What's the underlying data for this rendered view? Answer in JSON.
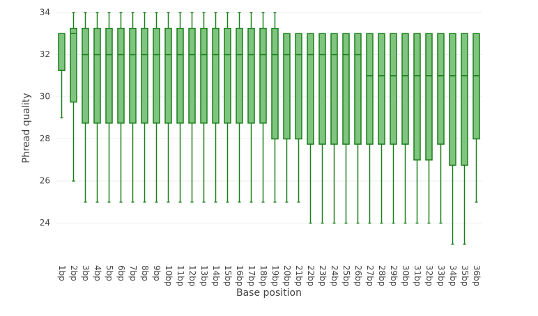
{
  "chart_data": {
    "type": "box",
    "x_label": "Base position",
    "y_label": "Phread quality",
    "categories": [
      "1bp",
      "2bp",
      "3bp",
      "4bp",
      "5bp",
      "6bp",
      "7bp",
      "8bp",
      "9bp",
      "10bp",
      "11bp",
      "12bp",
      "13bp",
      "14bp",
      "15bp",
      "16bp",
      "17bp",
      "18bp",
      "19bp",
      "20bp",
      "21bp",
      "22bp",
      "23bp",
      "24bp",
      "25bp",
      "26bp",
      "27bp",
      "28bp",
      "29bp",
      "30bp",
      "31bp",
      "32bp",
      "33bp",
      "34bp",
      "35bp",
      "36bp"
    ],
    "min": [
      29,
      26,
      25,
      25,
      25,
      25,
      25,
      25,
      25,
      25,
      25,
      25,
      25,
      25,
      25,
      25,
      25,
      25,
      25,
      25,
      25,
      24,
      24,
      24,
      24,
      24,
      24,
      24,
      24,
      24,
      24,
      24,
      24,
      23,
      23,
      25
    ],
    "q1": [
      31.25,
      29.75,
      28.75,
      28.75,
      28.75,
      28.75,
      28.75,
      28.75,
      28.75,
      28.75,
      28.75,
      28.75,
      28.75,
      28.75,
      28.75,
      28.75,
      28.75,
      28.75,
      28,
      28,
      28,
      27.75,
      27.75,
      27.75,
      27.75,
      27.75,
      27.75,
      27.75,
      27.75,
      27.75,
      27,
      27,
      27.75,
      26.75,
      26.75,
      28
    ],
    "median": [
      33,
      33,
      32,
      32,
      32,
      32,
      32,
      32,
      32,
      32,
      32,
      32,
      32,
      32,
      32,
      32,
      32,
      32,
      32,
      32,
      32,
      32,
      32,
      32,
      32,
      32,
      31,
      31,
      31,
      31,
      31,
      31,
      31,
      31,
      31,
      31
    ],
    "q3": [
      33,
      33.25,
      33.25,
      33.25,
      33.25,
      33.25,
      33.25,
      33.25,
      33.25,
      33.25,
      33.25,
      33.25,
      33.25,
      33.25,
      33.25,
      33.25,
      33.25,
      33.25,
      33.25,
      33,
      33,
      33,
      33,
      33,
      33,
      33,
      33,
      33,
      33,
      33,
      33,
      33,
      33,
      33,
      33,
      33
    ],
    "max": [
      33,
      34,
      34,
      34,
      34,
      34,
      34,
      34,
      34,
      34,
      34,
      34,
      34,
      34,
      34,
      34,
      34,
      34,
      34,
      33,
      33,
      33,
      33,
      33,
      33,
      33,
      33,
      33,
      33,
      33,
      33,
      33,
      33,
      33,
      33,
      33
    ],
    "color": "#1a7f1a",
    "fill": "#7fc47f",
    "ylim": [
      22.4,
      34
    ],
    "yticks": [
      24,
      26,
      28,
      30,
      32,
      34
    ],
    "grid": true
  }
}
